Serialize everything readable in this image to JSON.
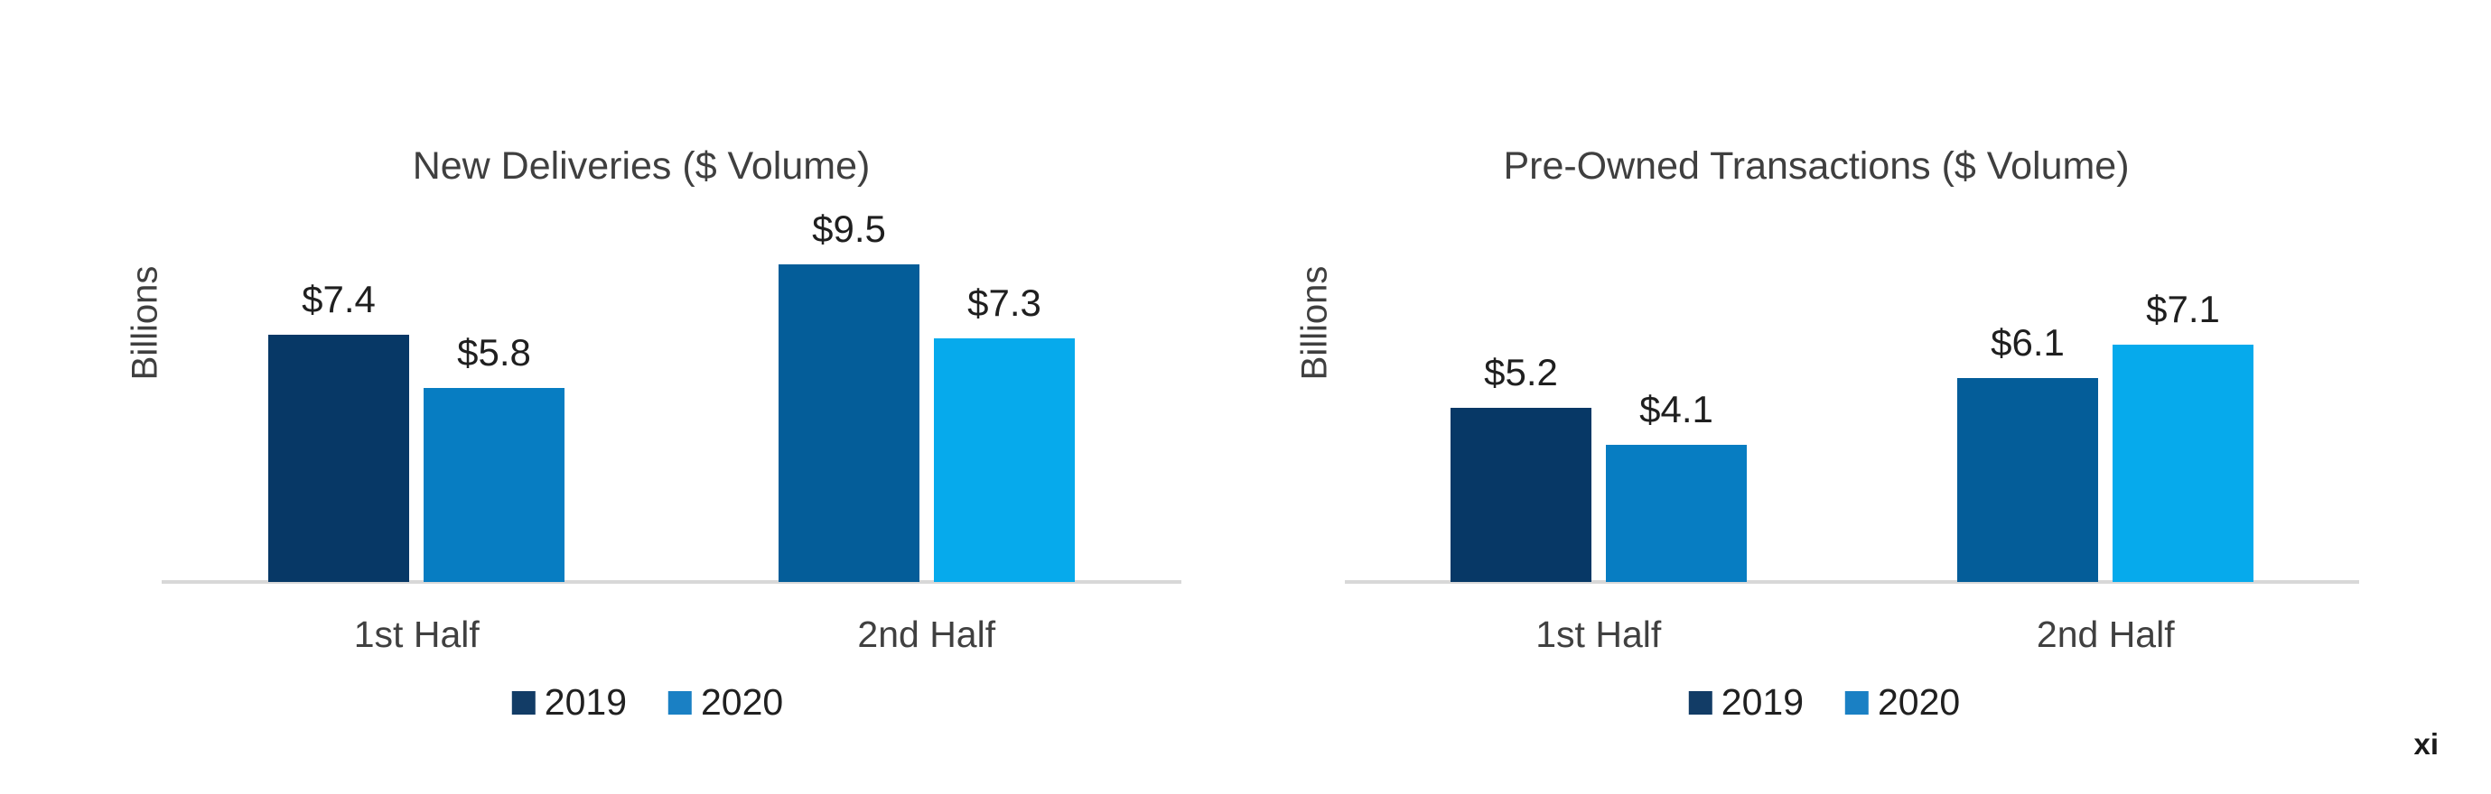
{
  "page": {
    "background": "#ffffff",
    "page_number": "xi"
  },
  "chart_data": [
    {
      "type": "bar",
      "title": "New Deliveries ($ Volume)",
      "xlabel": "",
      "ylabel": "Billions",
      "categories": [
        "1st Half",
        "2nd Half"
      ],
      "series": [
        {
          "name": "2019",
          "values": [
            7.4,
            9.5
          ],
          "data_labels": [
            "$7.4",
            "$9.5"
          ],
          "bar_colors": [
            "#073866",
            "#045d99"
          ]
        },
        {
          "name": "2020",
          "values": [
            5.8,
            7.3
          ],
          "data_labels": [
            "$5.8",
            "$7.3"
          ],
          "bar_colors": [
            "#077dc2",
            "#06aaec"
          ]
        }
      ],
      "legend": [
        {
          "label": "2019",
          "color": "#123c66"
        },
        {
          "label": "2020",
          "color": "#1a80c4"
        }
      ],
      "legend_position": "bottom",
      "grid": false,
      "y_axis_ticks_visible": false,
      "ylim": [
        0,
        10
      ]
    },
    {
      "type": "bar",
      "title": "Pre-Owned Transactions ($ Volume)",
      "xlabel": "",
      "ylabel": "Billions",
      "categories": [
        "1st Half",
        "2nd Half"
      ],
      "series": [
        {
          "name": "2019",
          "values": [
            5.2,
            6.1
          ],
          "data_labels": [
            "$5.2",
            "$6.1"
          ],
          "bar_colors": [
            "#073866",
            "#045d99"
          ]
        },
        {
          "name": "2020",
          "values": [
            4.1,
            7.1
          ],
          "data_labels": [
            "$4.1",
            "$7.1"
          ],
          "bar_colors": [
            "#077dc2",
            "#06aaec"
          ]
        }
      ],
      "legend": [
        {
          "label": "2019",
          "color": "#123c66"
        },
        {
          "label": "2020",
          "color": "#1a80c4"
        }
      ],
      "legend_position": "bottom",
      "grid": false,
      "y_axis_ticks_visible": false,
      "ylim": [
        0,
        10
      ]
    }
  ]
}
